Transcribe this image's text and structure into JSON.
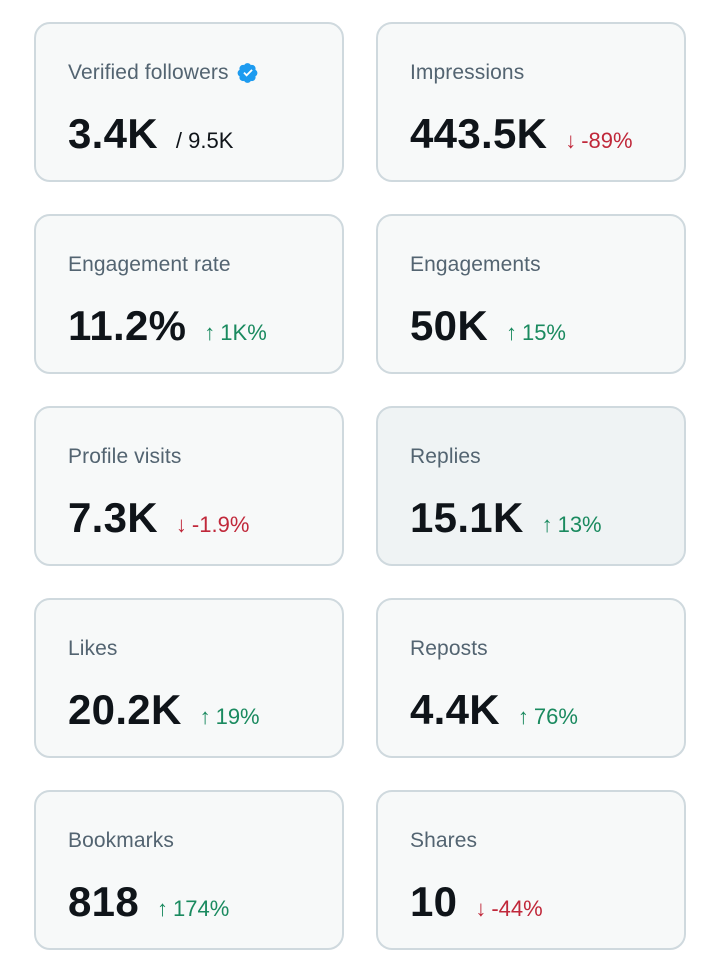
{
  "colors": {
    "card_background": "#f7f9f9",
    "card_hover_background": "#eff3f4",
    "card_border": "#cfd9de",
    "label": "#536471",
    "value": "#0f1419",
    "positive": "#1a8a5f",
    "negative": "#c0283a",
    "verified_badge": "#1d9bf0"
  },
  "cards": [
    {
      "label": "Verified followers",
      "value": "3.4K",
      "sub": "/ 9.5K",
      "verified_icon": "verified-badge-icon"
    },
    {
      "label": "Impressions",
      "value": "443.5K",
      "delta": {
        "direction": "down",
        "arrow": "↓",
        "text": "-89%"
      }
    },
    {
      "label": "Engagement rate",
      "value": "11.2%",
      "delta": {
        "direction": "up",
        "arrow": "↑",
        "text": "1K%"
      }
    },
    {
      "label": "Engagements",
      "value": "50K",
      "delta": {
        "direction": "up",
        "arrow": "↑",
        "text": "15%"
      }
    },
    {
      "label": "Profile visits",
      "value": "7.3K",
      "delta": {
        "direction": "down",
        "arrow": "↓",
        "text": "-1.9%"
      }
    },
    {
      "label": "Replies",
      "value": "15.1K",
      "delta": {
        "direction": "up",
        "arrow": "↑",
        "text": "13%"
      }
    },
    {
      "label": "Likes",
      "value": "20.2K",
      "delta": {
        "direction": "up",
        "arrow": "↑",
        "text": "19%"
      }
    },
    {
      "label": "Reposts",
      "value": "4.4K",
      "delta": {
        "direction": "up",
        "arrow": "↑",
        "text": "76%"
      }
    },
    {
      "label": "Bookmarks",
      "value": "818",
      "delta": {
        "direction": "up",
        "arrow": "↑",
        "text": "174%"
      }
    },
    {
      "label": "Shares",
      "value": "10",
      "delta": {
        "direction": "down",
        "arrow": "↓",
        "text": "-44%"
      }
    }
  ]
}
